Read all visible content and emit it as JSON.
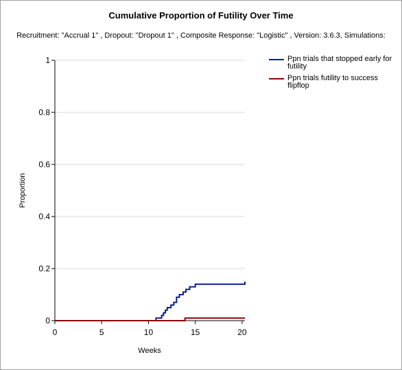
{
  "chart_data": {
    "type": "line",
    "title": "Cumulative Proportion of Futility Over Time",
    "subtitle": "Recruitment: \"Accrual 1\" , Dropout: \"Dropout 1\" , Composite Response: \"Logistic\" , Version: 3.6.3, Simulations:",
    "xlabel": "Weeks",
    "ylabel": "Proportion",
    "xlim": [
      0,
      20.3
    ],
    "ylim": [
      0,
      1
    ],
    "x_ticks": [
      0,
      5,
      10,
      15,
      20
    ],
    "x_tick_labels": [
      "0",
      "5",
      "10",
      "15",
      "20"
    ],
    "y_ticks": [
      0,
      0.2,
      0.4,
      0.6,
      0.8,
      1
    ],
    "y_tick_labels": [
      "0",
      "0.2",
      "0.4",
      "0.6",
      "0.8",
      "1"
    ],
    "grid": "horizontal",
    "legend_position": "right",
    "series": [
      {
        "name": "Ppn trials that stopped early for futility",
        "color": "#0a1e8c",
        "step": true,
        "x": [
          0,
          10.8,
          11.4,
          11.6,
          11.8,
          12.0,
          12.4,
          12.7,
          13.0,
          13.3,
          13.7,
          14.0,
          14.4,
          15.0,
          20.3
        ],
        "y": [
          0,
          0.01,
          0.02,
          0.03,
          0.04,
          0.05,
          0.06,
          0.07,
          0.09,
          0.1,
          0.11,
          0.12,
          0.13,
          0.14,
          0.15
        ]
      },
      {
        "name": "Ppn trials futility to success flipflop",
        "color": "#8b0000",
        "step": true,
        "x": [
          0,
          13.9,
          20.3
        ],
        "y": [
          0,
          0.01,
          0.01
        ]
      }
    ]
  }
}
